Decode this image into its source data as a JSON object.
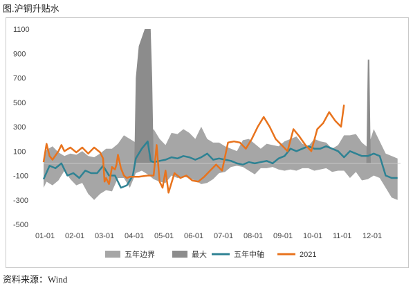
{
  "title": "图.沪铜升贴水",
  "source": "资料来源：Wind",
  "chart_data": {
    "type": "area",
    "x_ticks": [
      "01-01",
      "02-01",
      "03-01",
      "04-01",
      "05-01",
      "06-01",
      "07-01",
      "08-01",
      "09-01",
      "10-01",
      "11-01",
      "12-01"
    ],
    "ylim": [
      -500,
      1100
    ],
    "y_ticks": [
      -500,
      -300,
      -100,
      100,
      300,
      500,
      700,
      900,
      1100
    ],
    "grid": false,
    "legend_position": "bottom",
    "colors": {
      "band": "#a6a6a6",
      "max": "#8c8c8c",
      "median": "#2e8293",
      "y2021": "#e8731d"
    },
    "series": [
      {
        "name": "五年边界",
        "kind": "band",
        "x": [
          0,
          0.1,
          0.3,
          0.5,
          0.7,
          0.9,
          1.1,
          1.3,
          1.5,
          1.7,
          1.9,
          2.1,
          2.3,
          2.5,
          2.7,
          2.9,
          3.1,
          3.3,
          3.5,
          3.7,
          3.9,
          4.1,
          4.3,
          4.5,
          4.7,
          4.9,
          5.1,
          5.3,
          5.5,
          5.7,
          5.9,
          6.1,
          6.3,
          6.5,
          6.7,
          6.9,
          7.1,
          7.3,
          7.5,
          7.7,
          7.9,
          8.1,
          8.3,
          8.5,
          8.7,
          8.9,
          9.1,
          9.3,
          9.5,
          9.7,
          9.9,
          10.1,
          10.3,
          10.5,
          10.7,
          10.9,
          11.1,
          11.3,
          11.5,
          11.7,
          11.9
        ],
        "upper": [
          60,
          110,
          140,
          90,
          60,
          80,
          70,
          100,
          60,
          50,
          80,
          120,
          120,
          160,
          230,
          200,
          170,
          150,
          220,
          280,
          200,
          150,
          250,
          240,
          280,
          250,
          200,
          300,
          200,
          170,
          170,
          140,
          120,
          100,
          190,
          200,
          160,
          120,
          160,
          150,
          140,
          180,
          200,
          220,
          160,
          140,
          200,
          180,
          170,
          120,
          150,
          230,
          230,
          240,
          170,
          130,
          280,
          180,
          80,
          60,
          40
        ],
        "lower": [
          -200,
          -150,
          -180,
          -140,
          -60,
          -130,
          -180,
          -160,
          -250,
          -300,
          -250,
          -220,
          -230,
          -120,
          -120,
          -200,
          -80,
          -60,
          -90,
          -130,
          -150,
          -160,
          -100,
          -120,
          -110,
          -120,
          -140,
          -170,
          -160,
          -130,
          -80,
          -70,
          -30,
          -20,
          -30,
          -60,
          -90,
          -40,
          -40,
          -30,
          -50,
          -60,
          -50,
          -60,
          -40,
          -40,
          -60,
          -50,
          -40,
          -70,
          -60,
          -60,
          -120,
          -70,
          -140,
          -130,
          -100,
          -120,
          -200,
          -280,
          -300
        ]
      },
      {
        "name": "最大",
        "kind": "spike-area",
        "x": [
          3.05,
          3.1,
          3.2,
          3.3,
          3.4,
          3.5,
          3.6,
          3.65,
          3.7,
          10.85,
          10.9,
          10.95,
          11.0
        ],
        "values": [
          0,
          700,
          960,
          1030,
          1100,
          1100,
          1100,
          700,
          0,
          0,
          850,
          850,
          0
        ]
      },
      {
        "name": "五年中轴",
        "kind": "line",
        "x": [
          0,
          0.2,
          0.4,
          0.6,
          0.8,
          1.0,
          1.2,
          1.4,
          1.6,
          1.8,
          2.0,
          2.2,
          2.4,
          2.6,
          2.8,
          3.0,
          3.1,
          3.3,
          3.5,
          3.6,
          3.7,
          3.9,
          4.1,
          4.3,
          4.5,
          4.7,
          4.9,
          5.1,
          5.3,
          5.5,
          5.7,
          5.9,
          6.1,
          6.3,
          6.5,
          6.7,
          6.9,
          7.1,
          7.3,
          7.5,
          7.7,
          7.9,
          8.1,
          8.3,
          8.5,
          8.7,
          8.9,
          9.1,
          9.3,
          9.5,
          9.7,
          9.9,
          10.1,
          10.3,
          10.5,
          10.7,
          10.9,
          11.1,
          11.3,
          11.5,
          11.7,
          11.9
        ],
        "values": [
          -130,
          -20,
          -40,
          0,
          -100,
          -80,
          -120,
          -60,
          -80,
          -80,
          -20,
          -100,
          -100,
          -200,
          -180,
          -100,
          40,
          120,
          180,
          20,
          10,
          20,
          30,
          50,
          40,
          60,
          50,
          30,
          50,
          80,
          30,
          40,
          30,
          20,
          0,
          -10,
          10,
          0,
          10,
          20,
          0,
          40,
          60,
          120,
          100,
          120,
          140,
          120,
          120,
          140,
          120,
          100,
          50,
          100,
          80,
          60,
          60,
          80,
          60,
          -100,
          -120,
          -120
        ]
      },
      {
        "name": "2021",
        "kind": "line",
        "x": [
          0.0,
          0.1,
          0.2,
          0.3,
          0.5,
          0.6,
          0.7,
          0.9,
          1.1,
          1.3,
          1.5,
          1.7,
          1.9,
          2.0,
          2.05,
          2.1,
          2.2,
          2.3,
          2.4,
          2.45,
          2.5,
          2.6,
          2.7,
          2.8,
          2.9,
          3.0,
          3.2,
          3.5,
          3.7,
          3.8,
          3.9,
          4.0,
          4.1,
          4.2,
          4.4,
          4.6,
          4.8,
          5.0,
          5.2,
          5.4,
          5.6,
          5.8,
          6.0,
          6.2,
          6.4,
          6.6,
          6.8,
          7.0,
          7.2,
          7.4,
          7.6,
          7.8,
          8.0,
          8.2,
          8.4,
          8.6,
          8.8,
          9.0,
          9.2,
          9.4,
          9.6,
          9.8,
          10.0,
          10.1
        ],
        "values": [
          10,
          160,
          60,
          30,
          100,
          150,
          100,
          130,
          90,
          130,
          80,
          130,
          90,
          40,
          -150,
          -120,
          -170,
          -30,
          -50,
          -10,
          70,
          -40,
          -100,
          -120,
          -110,
          -110,
          -110,
          -100,
          -100,
          150,
          -150,
          -200,
          -60,
          -240,
          -80,
          -120,
          -100,
          -140,
          -150,
          -110,
          -60,
          -10,
          -60,
          170,
          180,
          170,
          120,
          200,
          300,
          380,
          300,
          200,
          150,
          100,
          280,
          220,
          150,
          100,
          280,
          330,
          420,
          350,
          300,
          480
        ]
      }
    ]
  }
}
